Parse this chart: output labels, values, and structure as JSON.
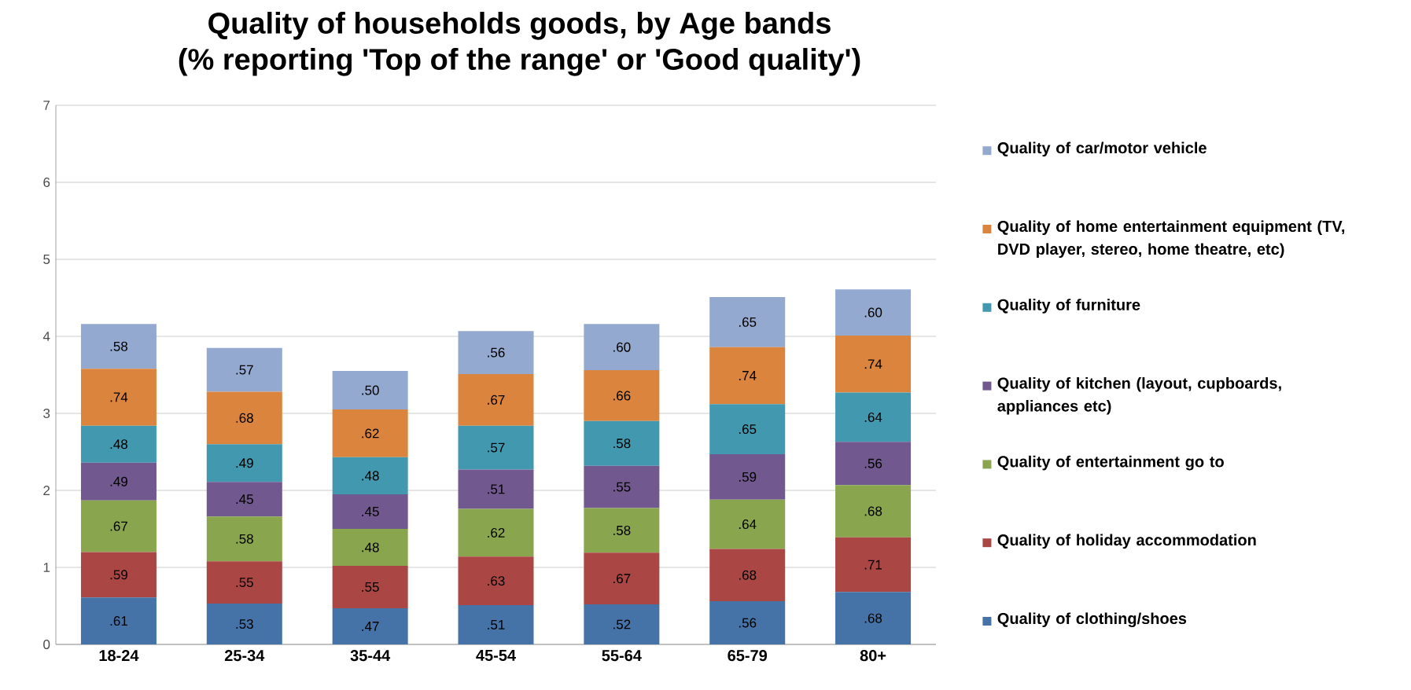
{
  "chart_data": {
    "type": "bar",
    "title": "Quality of households goods, by Age bands",
    "subtitle": "(% reporting 'Top of the range' or 'Good quality')",
    "categories": [
      "18-24",
      "25-34",
      "35-44",
      "45-54",
      "55-64",
      "65-79",
      "80+"
    ],
    "stacked": true,
    "ylim": [
      0,
      7
    ],
    "yticks": [
      0,
      1,
      2,
      3,
      4,
      5,
      6,
      7
    ],
    "grid": "y",
    "legend": "right",
    "series": [
      {
        "name": "Quality of clothing/shoes",
        "color": "#4572a7",
        "values": [
          0.61,
          0.53,
          0.47,
          0.51,
          0.52,
          0.56,
          0.68
        ],
        "value_labels": [
          ".61",
          ".53",
          ".47",
          ".51",
          ".52",
          ".56",
          ".68"
        ]
      },
      {
        "name": "Quality of holiday accommodation",
        "color": "#aa4643",
        "values": [
          0.59,
          0.55,
          0.55,
          0.63,
          0.67,
          0.68,
          0.71
        ],
        "value_labels": [
          ".59",
          ".55",
          ".55",
          ".63",
          ".67",
          ".68",
          ".71"
        ]
      },
      {
        "name": "Quality of entertainment go to",
        "color": "#89a54e",
        "values": [
          0.67,
          0.58,
          0.48,
          0.62,
          0.58,
          0.64,
          0.68
        ],
        "value_labels": [
          ".67",
          ".58",
          ".48",
          ".62",
          ".58",
          ".64",
          ".68"
        ]
      },
      {
        "name": "Quality of kitchen (layout, cupboards, appliances etc)",
        "color": "#71588f",
        "values": [
          0.49,
          0.45,
          0.45,
          0.51,
          0.55,
          0.59,
          0.56
        ],
        "value_labels": [
          ".49",
          ".45",
          ".45",
          ".51",
          ".55",
          ".59",
          ".56"
        ]
      },
      {
        "name": "Quality of furniture",
        "color": "#4198af",
        "values": [
          0.48,
          0.49,
          0.48,
          0.57,
          0.58,
          0.65,
          0.64
        ],
        "value_labels": [
          ".48",
          ".49",
          ".48",
          ".57",
          ".58",
          ".65",
          ".64"
        ]
      },
      {
        "name": "Quality of home entertainment equipment (TV, DVD player, stereo, home theatre, etc)",
        "color": "#db843d",
        "values": [
          0.74,
          0.68,
          0.62,
          0.67,
          0.66,
          0.74,
          0.74
        ],
        "value_labels": [
          ".74",
          ".68",
          ".62",
          ".67",
          ".66",
          ".74",
          ".74"
        ]
      },
      {
        "name": "Quality of car/motor vehicle",
        "color": "#93a9cf",
        "values": [
          0.58,
          0.57,
          0.5,
          0.56,
          0.6,
          0.65,
          0.6
        ],
        "value_labels": [
          ".58",
          ".57",
          ".50",
          ".56",
          ".60",
          ".65",
          ".60"
        ]
      }
    ]
  }
}
